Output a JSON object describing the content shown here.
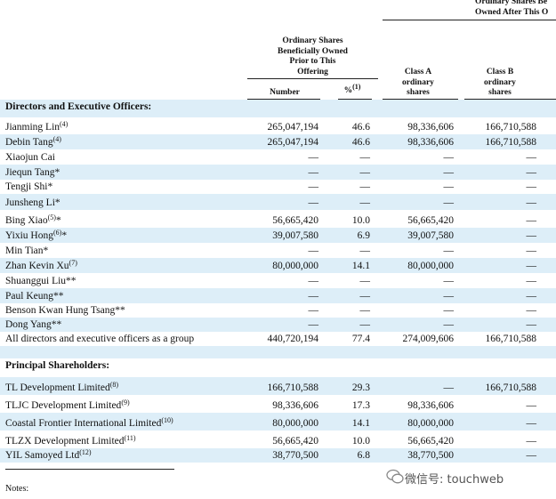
{
  "header": {
    "top_group": [
      "Ordinary Shares Be",
      "Owned After This O"
    ],
    "prior_group": [
      "Ordinary Shares",
      "Beneficially Owned",
      "Prior to This",
      "Offering"
    ],
    "number": "Number",
    "percent": "%",
    "percent_note": "(1)",
    "class_a": [
      "Class A",
      "ordinary",
      "shares"
    ],
    "class_b": [
      "Class B",
      "ordinary",
      "shares"
    ]
  },
  "sections": [
    {
      "title": "Directors and Executive Officers:",
      "rows": [
        {
          "name": "Jianming Lin",
          "note": "(4)",
          "suffix": "",
          "number": "265,047,194",
          "percent": "46.6",
          "class_a": "98,336,606",
          "class_b": "166,710,588"
        },
        {
          "name": "Debin Tang",
          "note": "(4)",
          "suffix": "",
          "number": "265,047,194",
          "percent": "46.6",
          "class_a": "98,336,606",
          "class_b": "166,710,588"
        },
        {
          "name": "Xiaojun Cai",
          "note": "",
          "suffix": "",
          "number": "—",
          "percent": "—",
          "class_a": "—",
          "class_b": "—"
        },
        {
          "name": "Jiequn Tang",
          "note": "",
          "suffix": "*",
          "number": "—",
          "percent": "—",
          "class_a": "—",
          "class_b": "—"
        },
        {
          "name": "Tengji Shi",
          "note": "",
          "suffix": "*",
          "number": "—",
          "percent": "—",
          "class_a": "—",
          "class_b": "—"
        },
        {
          "name": "Junsheng Li",
          "note": "",
          "suffix": "*",
          "number": "—",
          "percent": "—",
          "class_a": "—",
          "class_b": "—"
        },
        {
          "name": "Bing Xiao",
          "note": "(5)",
          "suffix": "*",
          "number": "56,665,420",
          "percent": "10.0",
          "class_a": "56,665,420",
          "class_b": "—"
        },
        {
          "name": "Yixiu Hong",
          "note": "(6)",
          "suffix": "*",
          "number": "39,007,580",
          "percent": "6.9",
          "class_a": "39,007,580",
          "class_b": "—"
        },
        {
          "name": "Min Tian",
          "note": "",
          "suffix": "*",
          "number": "—",
          "percent": "—",
          "class_a": "—",
          "class_b": "—"
        },
        {
          "name": "Zhan Kevin Xu",
          "note": "(7)",
          "suffix": "",
          "number": "80,000,000",
          "percent": "14.1",
          "class_a": "80,000,000",
          "class_b": "—"
        },
        {
          "name": "Shuanggui Liu",
          "note": "",
          "suffix": "**",
          "number": "—",
          "percent": "—",
          "class_a": "—",
          "class_b": "—"
        },
        {
          "name": "Paul Keung",
          "note": "",
          "suffix": "**",
          "number": "—",
          "percent": "—",
          "class_a": "—",
          "class_b": "—"
        },
        {
          "name": "Benson Kwan Hung Tsang",
          "note": "",
          "suffix": "**",
          "number": "—",
          "percent": "—",
          "class_a": "—",
          "class_b": "—"
        },
        {
          "name": "Dong Yang",
          "note": "",
          "suffix": "**",
          "number": "—",
          "percent": "—",
          "class_a": "—",
          "class_b": "—"
        },
        {
          "name": "All directors and executive officers as a group",
          "note": "",
          "suffix": "",
          "number": "440,720,194",
          "percent": "77.4",
          "class_a": "274,009,606",
          "class_b": "166,710,588"
        }
      ]
    },
    {
      "title": "Principal Shareholders:",
      "rows": [
        {
          "name": "TL Development Limited",
          "note": "(8)",
          "suffix": "",
          "number": "166,710,588",
          "percent": "29.3",
          "class_a": "—",
          "class_b": "166,710,588"
        },
        {
          "name": "TLJC Development Limited",
          "note": "(9)",
          "suffix": "",
          "number": "98,336,606",
          "percent": "17.3",
          "class_a": "98,336,606",
          "class_b": "—"
        },
        {
          "name": "Coastal Frontier International Limited",
          "note": "(10)",
          "suffix": "",
          "number": "80,000,000",
          "percent": "14.1",
          "class_a": "80,000,000",
          "class_b": "—"
        },
        {
          "name": "TLZX Development Limited",
          "note": "(11)",
          "suffix": "",
          "number": "56,665,420",
          "percent": "10.0",
          "class_a": "56,665,420",
          "class_b": "—"
        },
        {
          "name": "YIL Samoyed Ltd",
          "note": "(12)",
          "suffix": "",
          "number": "38,770,500",
          "percent": "6.8",
          "class_a": "38,770,500",
          "class_b": "—"
        }
      ]
    }
  ],
  "notes": "Notes:",
  "watermark": "微信号: touchweb"
}
